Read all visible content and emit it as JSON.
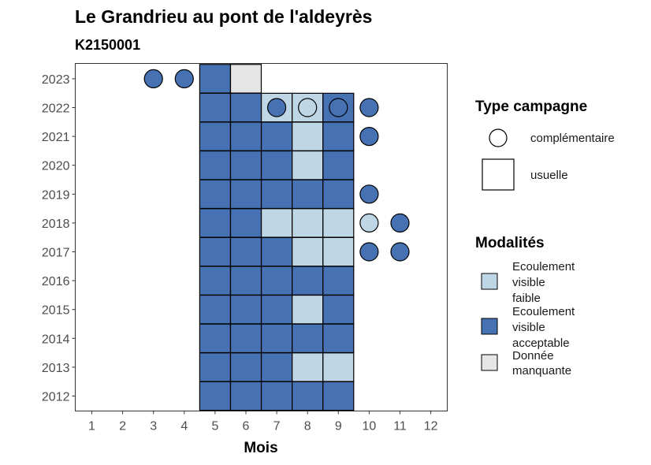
{
  "chart_data": {
    "type": "heatmap",
    "title": "Le Grandrieu au pont de l'aldeyrès",
    "subtitle": "K2150001",
    "xlabel": "Mois",
    "ylabel": "",
    "x": [
      1,
      2,
      3,
      4,
      5,
      6,
      7,
      8,
      9,
      10,
      11,
      12
    ],
    "y": [
      2012,
      2013,
      2014,
      2015,
      2016,
      2017,
      2018,
      2019,
      2020,
      2021,
      2022,
      2023
    ],
    "grid": false,
    "colors": {
      "faible": "#bfd6e6",
      "acceptable": "#4672b4",
      "manquante": "#e5e5e5"
    },
    "usuelle": [
      {
        "year": 2012,
        "months": [
          5,
          6,
          7,
          8,
          9
        ],
        "values": [
          "acceptable",
          "acceptable",
          "acceptable",
          "acceptable",
          "acceptable"
        ]
      },
      {
        "year": 2013,
        "months": [
          5,
          6,
          7,
          8,
          9
        ],
        "values": [
          "acceptable",
          "acceptable",
          "acceptable",
          "faible",
          "faible"
        ]
      },
      {
        "year": 2014,
        "months": [
          5,
          6,
          7,
          8,
          9
        ],
        "values": [
          "acceptable",
          "acceptable",
          "acceptable",
          "acceptable",
          "acceptable"
        ]
      },
      {
        "year": 2015,
        "months": [
          5,
          6,
          7,
          8,
          9
        ],
        "values": [
          "acceptable",
          "acceptable",
          "acceptable",
          "faible",
          "acceptable"
        ]
      },
      {
        "year": 2016,
        "months": [
          5,
          6,
          7,
          8,
          9
        ],
        "values": [
          "acceptable",
          "acceptable",
          "acceptable",
          "acceptable",
          "acceptable"
        ]
      },
      {
        "year": 2017,
        "months": [
          5,
          6,
          7,
          8,
          9
        ],
        "values": [
          "acceptable",
          "acceptable",
          "acceptable",
          "faible",
          "faible"
        ]
      },
      {
        "year": 2018,
        "months": [
          5,
          6,
          7,
          8,
          9
        ],
        "values": [
          "acceptable",
          "acceptable",
          "faible",
          "faible",
          "faible"
        ]
      },
      {
        "year": 2019,
        "months": [
          5,
          6,
          7,
          8,
          9
        ],
        "values": [
          "acceptable",
          "acceptable",
          "acceptable",
          "acceptable",
          "acceptable"
        ]
      },
      {
        "year": 2020,
        "months": [
          5,
          6,
          7,
          8,
          9
        ],
        "values": [
          "acceptable",
          "acceptable",
          "acceptable",
          "faible",
          "acceptable"
        ]
      },
      {
        "year": 2021,
        "months": [
          5,
          6,
          7,
          8,
          9
        ],
        "values": [
          "acceptable",
          "acceptable",
          "acceptable",
          "faible",
          "acceptable"
        ]
      },
      {
        "year": 2022,
        "months": [
          5,
          6,
          7,
          8,
          9
        ],
        "values": [
          "acceptable",
          "acceptable",
          "faible",
          "faible",
          "acceptable"
        ]
      },
      {
        "year": 2023,
        "months": [
          5,
          6
        ],
        "values": [
          "acceptable",
          "manquante"
        ]
      }
    ],
    "complementaire": [
      {
        "year": 2023,
        "month": 3,
        "value": "acceptable"
      },
      {
        "year": 2023,
        "month": 4,
        "value": "acceptable"
      },
      {
        "year": 2022,
        "month": 7,
        "value": "acceptable"
      },
      {
        "year": 2022,
        "month": 8,
        "value": "faible"
      },
      {
        "year": 2022,
        "month": 9,
        "value": "acceptable"
      },
      {
        "year": 2022,
        "month": 10,
        "value": "acceptable"
      },
      {
        "year": 2021,
        "month": 10,
        "value": "acceptable"
      },
      {
        "year": 2019,
        "month": 10,
        "value": "acceptable"
      },
      {
        "year": 2018,
        "month": 10,
        "value": "faible"
      },
      {
        "year": 2018,
        "month": 11,
        "value": "acceptable"
      },
      {
        "year": 2017,
        "month": 10,
        "value": "acceptable"
      },
      {
        "year": 2017,
        "month": 11,
        "value": "acceptable"
      }
    ]
  },
  "legend": {
    "type_title": "Type campagne",
    "type_items": [
      {
        "key": "complementaire",
        "label": "complémentaire"
      },
      {
        "key": "usuelle",
        "label": "usuelle"
      }
    ],
    "mod_title": "Modalités",
    "mod_items": [
      {
        "key": "faible",
        "lines": [
          "Ecoulement",
          "visible",
          "faible"
        ]
      },
      {
        "key": "acceptable",
        "lines": [
          "Ecoulement",
          "visible",
          "acceptable"
        ]
      },
      {
        "key": "manquante",
        "lines": [
          "Donnée",
          "manquante"
        ]
      }
    ]
  }
}
